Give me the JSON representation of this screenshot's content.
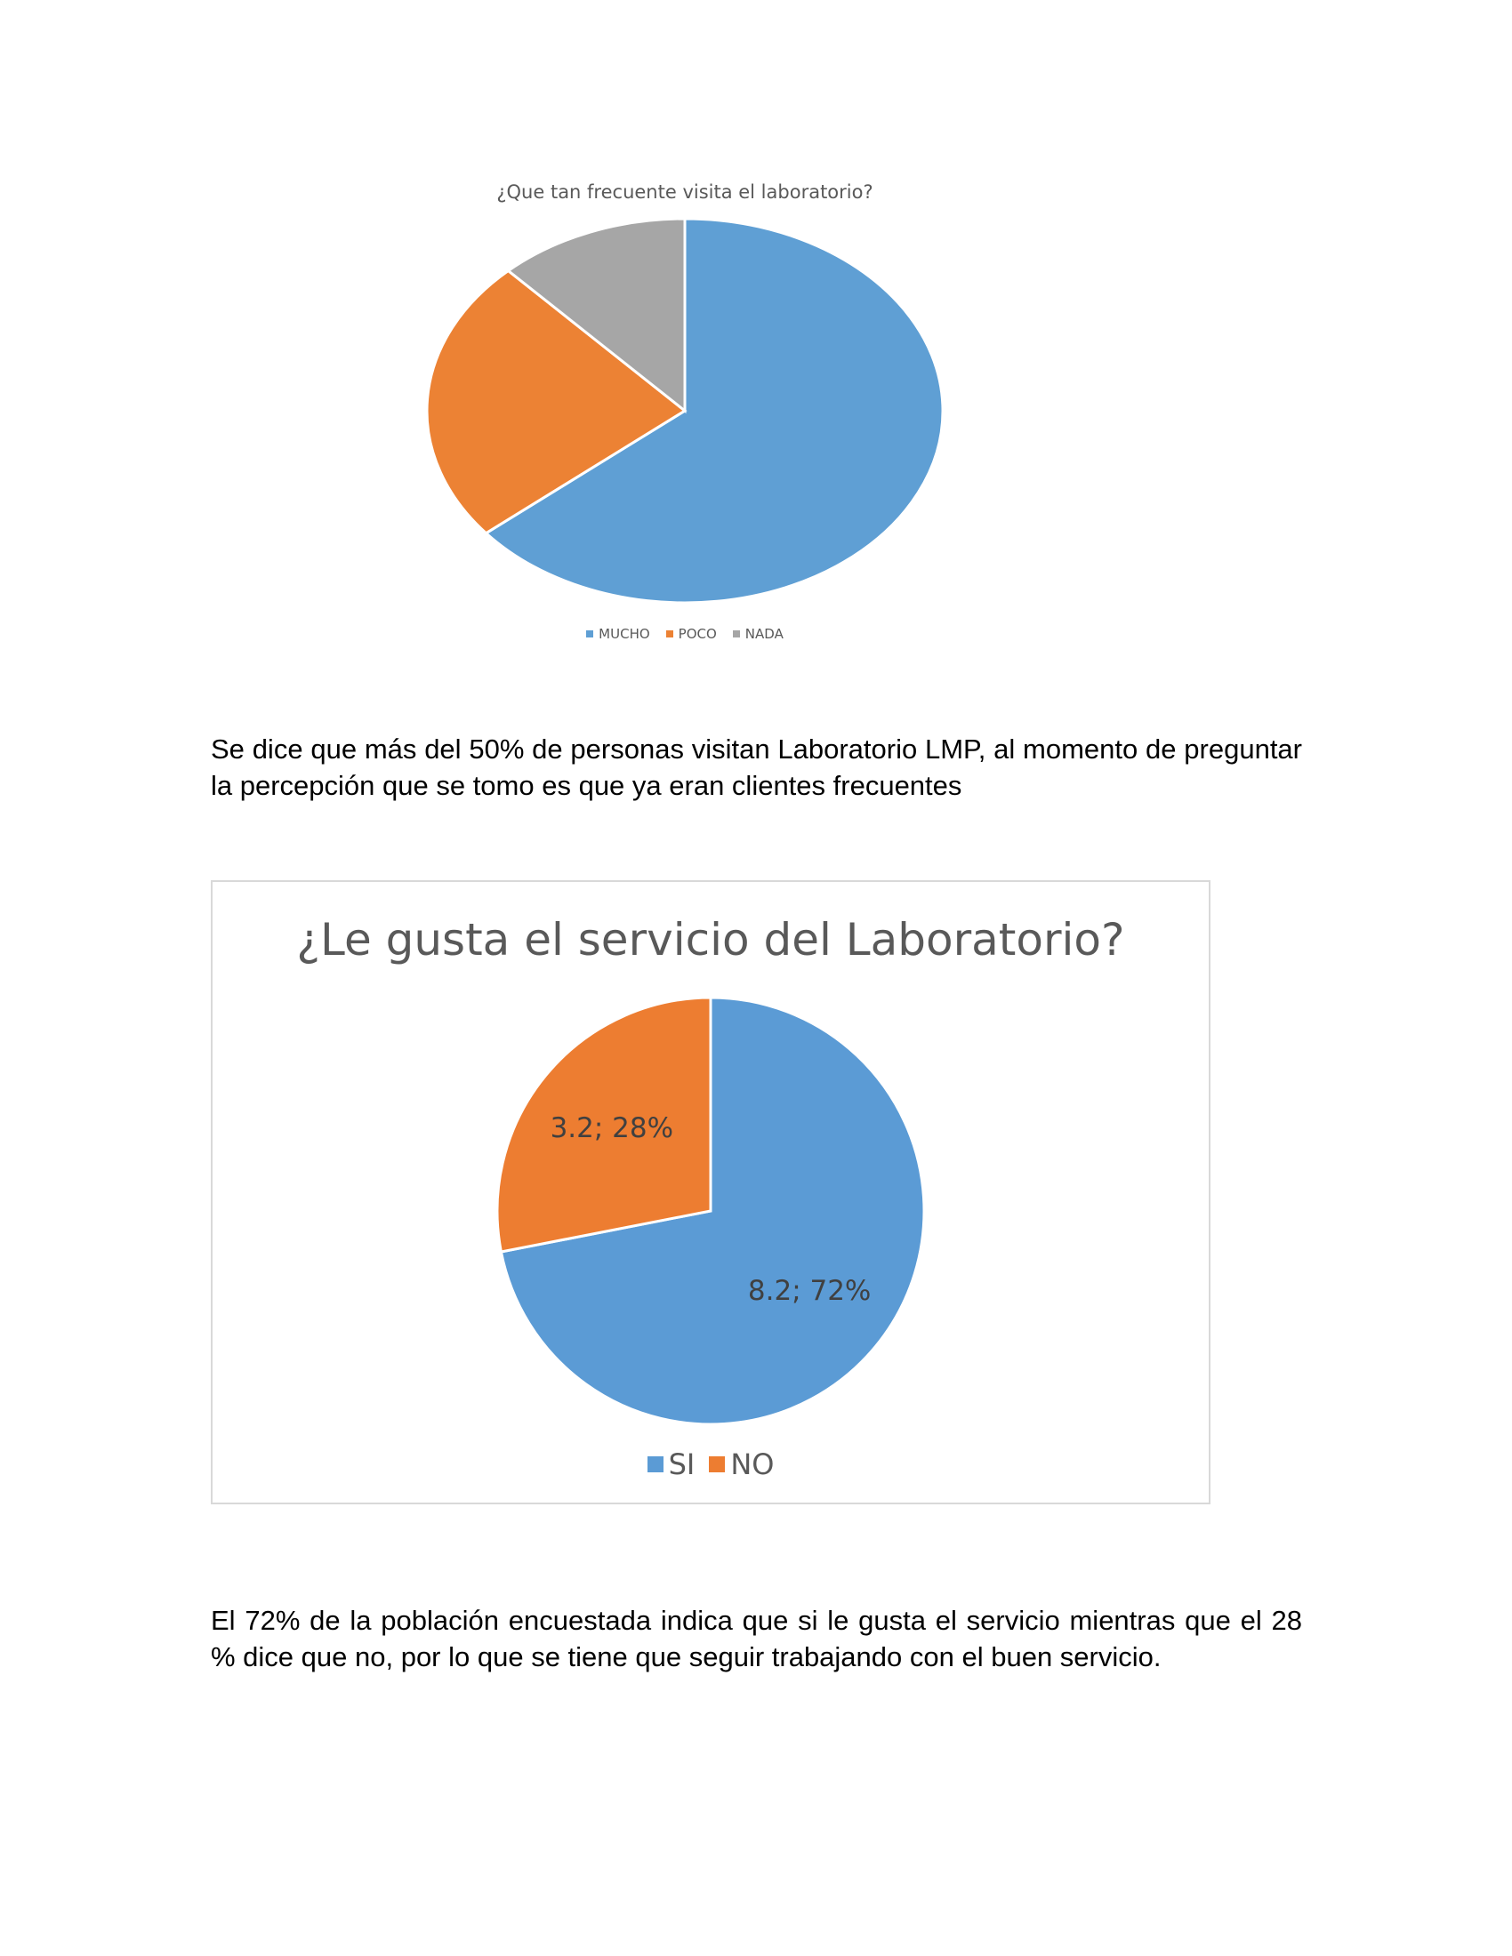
{
  "chart_data": [
    {
      "type": "pie",
      "title": "¿Que tan frecuente visita el laboratorio?",
      "categories": [
        "MUCHO",
        "POCO",
        "NADA"
      ],
      "values": [
        64,
        24,
        12
      ],
      "colors": [
        "#5f9fd4",
        "#ec8234",
        "#a6a6a6"
      ],
      "legend_position": "bottom"
    },
    {
      "type": "pie",
      "title": "¿Le gusta el servicio del Laboratorio?",
      "categories": [
        "SI",
        "NO"
      ],
      "values": [
        8.2,
        3.2
      ],
      "data_labels": [
        "8.2; 72%",
        "3.2; 28%"
      ],
      "colors": [
        "#5b9bd5",
        "#ed7d31"
      ],
      "legend_position": "bottom"
    }
  ],
  "paragraphs": {
    "p1": "Se dice que más del 50% de personas visitan Laboratorio LMP, al momento de preguntar la percepción que se tomo es que ya eran clientes frecuentes",
    "p2": "El 72% de la población encuestada indica que si le gusta el servicio mientras que el 28 % dice que no, por lo que se tiene que seguir trabajando con el buen servicio."
  }
}
